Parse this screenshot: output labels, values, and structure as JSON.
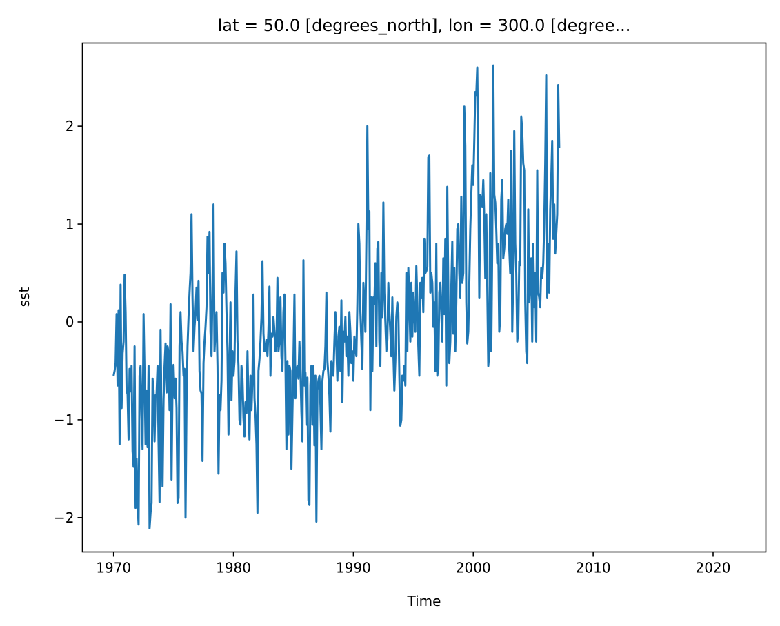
{
  "chart_data": {
    "type": "line",
    "title": "lat = 50.0 [degrees_north], lon = 300.0 [degree...",
    "xlabel": "Time",
    "ylabel": "sst",
    "xlim": [
      1967.4,
      2024.4
    ],
    "ylim": [
      -2.35,
      2.85
    ],
    "xticks": [
      1970,
      1980,
      1990,
      2000,
      2010,
      2020
    ],
    "xtick_labels": [
      "1970",
      "1980",
      "1990",
      "2000",
      "2010",
      "2020"
    ],
    "yticks": [
      -2,
      -1,
      0,
      1,
      2
    ],
    "ytick_labels": [
      "−2",
      "−1",
      "0",
      "1",
      "2"
    ],
    "grid": false,
    "legend": "none",
    "series_color": "#1f77b4",
    "x_start": 1970.0,
    "x_step_years": 0.083333,
    "values": [
      -0.55,
      -0.5,
      -0.42,
      0.08,
      -0.65,
      0.12,
      -1.25,
      0.38,
      -0.88,
      -0.32,
      -0.2,
      0.48,
      0.1,
      -0.7,
      -0.74,
      -1.2,
      -0.48,
      -0.71,
      -0.45,
      -1.32,
      -1.48,
      -0.25,
      -1.9,
      -1.4,
      -1.85,
      -2.07,
      -0.55,
      -0.45,
      -0.95,
      -1.3,
      0.08,
      -0.52,
      -1.25,
      -0.7,
      -1.28,
      -0.45,
      -2.11,
      -1.95,
      -1.85,
      -0.58,
      -0.7,
      -1.22,
      -0.75,
      -0.75,
      -0.45,
      -1.22,
      -1.84,
      -0.08,
      -1.05,
      -1.68,
      -0.8,
      -0.45,
      -0.22,
      -0.72,
      -0.25,
      -0.32,
      -0.9,
      0.18,
      -1.61,
      -0.6,
      -0.44,
      -0.78,
      -0.58,
      -0.88,
      -1.85,
      -1.8,
      -0.25,
      0.1,
      -0.2,
      -0.3,
      -0.55,
      -0.48,
      -2.0,
      -0.8,
      -0.25,
      0.05,
      0.3,
      0.5,
      1.1,
      0.25,
      -0.3,
      -0.05,
      0.1,
      0.35,
      0.02,
      0.42,
      -0.5,
      -0.7,
      -0.73,
      -1.42,
      -0.42,
      -0.2,
      -0.05,
      0.15,
      0.87,
      0.5,
      0.92,
      -0.1,
      -0.35,
      0.38,
      1.2,
      -0.3,
      -0.08,
      0.1,
      -0.45,
      -1.55,
      -0.75,
      -0.9,
      -0.6,
      0.5,
      0.3,
      0.8,
      0.6,
      0.1,
      -0.3,
      -1.15,
      -0.4,
      0.2,
      -0.8,
      -0.3,
      -0.55,
      -0.4,
      0.3,
      0.72,
      -0.2,
      -0.45,
      -1.0,
      -1.05,
      -0.45,
      -0.58,
      -0.98,
      -1.17,
      -0.82,
      -0.93,
      -0.3,
      -0.85,
      -1.2,
      -0.55,
      -0.9,
      -0.58,
      0.28,
      -0.78,
      -0.95,
      -1.25,
      -1.95,
      -0.5,
      -0.38,
      -0.2,
      0.05,
      0.62,
      -0.12,
      -0.3,
      -0.28,
      -0.18,
      -0.35,
      -0.08,
      0.36,
      -0.55,
      -0.12,
      -0.15,
      0.05,
      -0.1,
      -0.3,
      -0.25,
      0.45,
      -0.3,
      -0.2,
      0.25,
      -0.35,
      -0.5,
      0.1,
      0.28,
      -0.4,
      -1.3,
      -0.4,
      -1.15,
      -0.45,
      -0.5,
      -1.5,
      -0.92,
      -0.38,
      0.28,
      -0.78,
      -0.5,
      -0.45,
      -0.58,
      -0.2,
      -0.5,
      -0.92,
      -1.22,
      0.63,
      -0.65,
      -0.52,
      -1.05,
      -0.57,
      -1.82,
      -1.87,
      -0.65,
      -0.45,
      -1.05,
      -0.45,
      -1.26,
      -0.55,
      -2.04,
      -0.7,
      -0.6,
      -0.55,
      -0.85,
      -1.3,
      -0.6,
      -0.5,
      -0.48,
      -0.25,
      0.3,
      -0.4,
      -0.55,
      -0.75,
      -1.12,
      -0.4,
      -0.45,
      -0.55,
      -0.2,
      0.1,
      -0.25,
      -0.6,
      -0.15,
      -0.05,
      -0.5,
      0.22,
      -0.82,
      -0.1,
      -0.2,
      0.05,
      -0.35,
      -0.15,
      -0.55,
      0.1,
      -0.1,
      -0.42,
      -0.3,
      -0.6,
      -0.15,
      -0.25,
      -0.35,
      0.2,
      1.0,
      0.8,
      0.1,
      -0.2,
      -0.48,
      0.4,
      0.2,
      -0.1,
      0.85,
      2.0,
      0.95,
      1.13,
      -0.9,
      0.25,
      -0.5,
      0.25,
      0.18,
      0.6,
      -0.25,
      0.75,
      0.82,
      -0.2,
      -0.45,
      0.5,
      0.05,
      1.22,
      0.3,
      0.0,
      -0.3,
      -0.18,
      0.4,
      0.1,
      -0.1,
      -0.35,
      0.25,
      -0.3,
      -0.7,
      -0.4,
      0.05,
      0.2,
      0.1,
      -0.55,
      -1.06,
      -1.0,
      -0.55,
      -0.6,
      -0.45,
      -0.65,
      0.5,
      -0.3,
      0.55,
      0.22,
      -0.2,
      0.4,
      -0.15,
      0.3,
      0.05,
      -0.1,
      0.57,
      0.2,
      -0.25,
      -0.55,
      0.4,
      0.25,
      0.45,
      0.1,
      0.85,
      0.5,
      0.52,
      0.56,
      1.68,
      1.7,
      0.3,
      0.5,
      0.4,
      -0.05,
      0.2,
      -0.5,
      0.8,
      -0.55,
      -0.48,
      0.3,
      0.4,
      0.1,
      -0.2,
      0.65,
      0.08,
      0.85,
      -0.65,
      1.38,
      0.32,
      -0.42,
      -0.2,
      0.35,
      0.82,
      -0.12,
      0.55,
      -0.3,
      0.2,
      0.95,
      1.0,
      0.5,
      0.25,
      1.28,
      0.4,
      0.5,
      2.2,
      1.8,
      0.2,
      -0.22,
      -0.1,
      0.4,
      0.95,
      1.3,
      1.6,
      1.4,
      1.85,
      2.35,
      2.32,
      2.6,
      1.65,
      0.25,
      1.3,
      1.25,
      1.18,
      1.45,
      1.05,
      0.45,
      1.1,
      0.35,
      -0.45,
      -0.32,
      1.52,
      -0.3,
      0.82,
      2.62,
      1.3,
      1.22,
      0.95,
      0.6,
      0.8,
      -0.1,
      0.05,
      1.25,
      1.45,
      0.65,
      0.75,
      0.95,
      1.0,
      0.9,
      1.25,
      0.75,
      0.5,
      1.75,
      -0.1,
      0.5,
      1.95,
      0.8,
      0.5,
      -0.2,
      -0.1,
      0.62,
      0.58,
      2.1,
      1.95,
      1.62,
      1.55,
      0.2,
      -0.3,
      -0.42,
      1.15,
      0.2,
      0.4,
      0.65,
      -0.2,
      0.8,
      0.15,
      0.5,
      -0.2,
      1.55,
      0.3,
      0.25,
      0.15,
      0.55,
      0.45,
      0.6,
      1.0,
      1.62,
      2.52,
      0.25,
      0.8,
      0.3,
      1.15,
      1.45,
      1.85,
      0.85,
      1.2,
      0.7,
      0.9,
      1.1,
      2.42,
      1.78
    ]
  }
}
